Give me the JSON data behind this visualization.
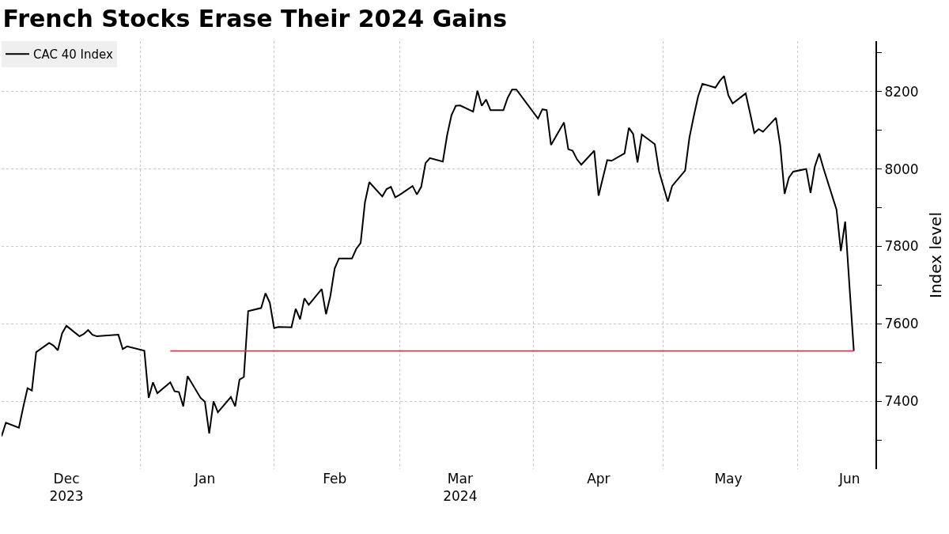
{
  "chart_data": {
    "type": "line",
    "title": "French Stocks Erase Their 2024 Gains",
    "ylabel": "Index level",
    "x": [
      "2023-11-30",
      "2023-12-01",
      "2023-12-04",
      "2023-12-05",
      "2023-12-06",
      "2023-12-07",
      "2023-12-08",
      "2023-12-11",
      "2023-12-12",
      "2023-12-13",
      "2023-12-14",
      "2023-12-15",
      "2023-12-18",
      "2023-12-19",
      "2023-12-20",
      "2023-12-21",
      "2023-12-22",
      "2023-12-27",
      "2023-12-28",
      "2023-12-29",
      "2024-01-02",
      "2024-01-03",
      "2024-01-04",
      "2024-01-05",
      "2024-01-08",
      "2024-01-09",
      "2024-01-10",
      "2024-01-11",
      "2024-01-12",
      "2024-01-15",
      "2024-01-16",
      "2024-01-17",
      "2024-01-18",
      "2024-01-19",
      "2024-01-22",
      "2024-01-23",
      "2024-01-24",
      "2024-01-25",
      "2024-01-26",
      "2024-01-29",
      "2024-01-30",
      "2024-01-31",
      "2024-02-01",
      "2024-02-02",
      "2024-02-05",
      "2024-02-06",
      "2024-02-07",
      "2024-02-08",
      "2024-02-09",
      "2024-02-12",
      "2024-02-13",
      "2024-02-14",
      "2024-02-15",
      "2024-02-16",
      "2024-02-19",
      "2024-02-20",
      "2024-02-21",
      "2024-02-22",
      "2024-02-23",
      "2024-02-26",
      "2024-02-27",
      "2024-02-28",
      "2024-02-29",
      "2024-03-01",
      "2024-03-04",
      "2024-03-05",
      "2024-03-06",
      "2024-03-07",
      "2024-03-08",
      "2024-03-11",
      "2024-03-12",
      "2024-03-13",
      "2024-03-14",
      "2024-03-15",
      "2024-03-18",
      "2024-03-19",
      "2024-03-20",
      "2024-03-21",
      "2024-03-22",
      "2024-03-25",
      "2024-03-26",
      "2024-03-27",
      "2024-03-28",
      "2024-04-02",
      "2024-04-03",
      "2024-04-04",
      "2024-04-05",
      "2024-04-08",
      "2024-04-09",
      "2024-04-10",
      "2024-04-11",
      "2024-04-12",
      "2024-04-15",
      "2024-04-16",
      "2024-04-17",
      "2024-04-18",
      "2024-04-19",
      "2024-04-22",
      "2024-04-23",
      "2024-04-24",
      "2024-04-25",
      "2024-04-26",
      "2024-04-29",
      "2024-04-30",
      "2024-05-02",
      "2024-05-03",
      "2024-05-06",
      "2024-05-07",
      "2024-05-08",
      "2024-05-09",
      "2024-05-10",
      "2024-05-13",
      "2024-05-14",
      "2024-05-15",
      "2024-05-16",
      "2024-05-17",
      "2024-05-20",
      "2024-05-21",
      "2024-05-22",
      "2024-05-23",
      "2024-05-24",
      "2024-05-27",
      "2024-05-28",
      "2024-05-29",
      "2024-05-30",
      "2024-05-31",
      "2024-06-03",
      "2024-06-04",
      "2024-06-05",
      "2024-06-06",
      "2024-06-07",
      "2024-06-10",
      "2024-06-11",
      "2024-06-12",
      "2024-06-14"
    ],
    "series": [
      {
        "name": "CAC 40 Index",
        "color": "#000000",
        "values": [
          7310,
          7345,
          7332,
          7385,
          7434,
          7428,
          7527,
          7551,
          7544,
          7532,
          7576,
          7595,
          7568,
          7574,
          7584,
          7572,
          7568,
          7572,
          7535,
          7542,
          7531,
          7409,
          7449,
          7421,
          7449,
          7426,
          7424,
          7387,
          7465,
          7409,
          7399,
          7317,
          7400,
          7372,
          7411,
          7387,
          7456,
          7463,
          7633,
          7641,
          7679,
          7655,
          7589,
          7592,
          7591,
          7639,
          7612,
          7666,
          7649,
          7690,
          7625,
          7672,
          7743,
          7769,
          7769,
          7794,
          7809,
          7914,
          7966,
          7929,
          7948,
          7954,
          7927,
          7933,
          7956,
          7934,
          7954,
          8015,
          8028,
          8019,
          8088,
          8139,
          8163,
          8164,
          8148,
          8202,
          8163,
          8179,
          8152,
          8152,
          8184,
          8205,
          8205,
          8130,
          8154,
          8152,
          8062,
          8120,
          8051,
          8047,
          8025,
          8011,
          8047,
          7931,
          7977,
          8023,
          8021,
          8040,
          8106,
          8090,
          8017,
          8089,
          8064,
          7993,
          7916,
          7956,
          7996,
          8081,
          8136,
          8187,
          8220,
          8210,
          8227,
          8240,
          8190,
          8169,
          8195,
          8145,
          8093,
          8103,
          8096,
          8132,
          8060,
          7936,
          7978,
          7993,
          8000,
          7938,
          8007,
          8040,
          8001,
          7895,
          7788,
          7864,
          7530
        ]
      },
      {
        "type": "line",
        "color": "#e8314f",
        "x": [
          "2024-01-08",
          "2024-06-14"
        ],
        "values": [
          7530,
          7530
        ]
      }
    ],
    "xlim": [
      "2023-11-30",
      "2024-06-19"
    ],
    "xticks": [
      {
        "value": "2023-12-15",
        "label": "Dec\n2023"
      },
      {
        "value": "2024-01-16",
        "label": "Jan"
      },
      {
        "value": "2024-02-15",
        "label": "Feb"
      },
      {
        "value": "2024-03-15",
        "label": "Mar\n2024"
      },
      {
        "value": "2024-04-16",
        "label": "Apr"
      },
      {
        "value": "2024-05-16",
        "label": "May"
      },
      {
        "value": "2024-06-13",
        "label": "Jun"
      },
      {
        "value": "2024-01-01",
        "label": null
      },
      {
        "value": "2024-02-01",
        "label": null
      },
      {
        "value": "2024-03-01",
        "label": null
      },
      {
        "value": "2024-04-01",
        "label": null
      },
      {
        "value": "2024-05-01",
        "label": null
      },
      {
        "value": "2024-06-01",
        "label": null
      }
    ],
    "ylim": [
      7225,
      8330
    ],
    "yticks": [
      7400,
      7600,
      7800,
      8000,
      8200,
      {
        "value": 7300,
        "label": null
      },
      {
        "value": 7500,
        "label": null
      },
      {
        "value": 7700,
        "label": null
      },
      {
        "value": 7900,
        "label": null
      },
      {
        "value": 8100,
        "label": null
      },
      {
        "value": 8300,
        "label": null
      }
    ],
    "grid": true,
    "legend": "top left",
    "marker": "none",
    "line_style": "solid"
  }
}
